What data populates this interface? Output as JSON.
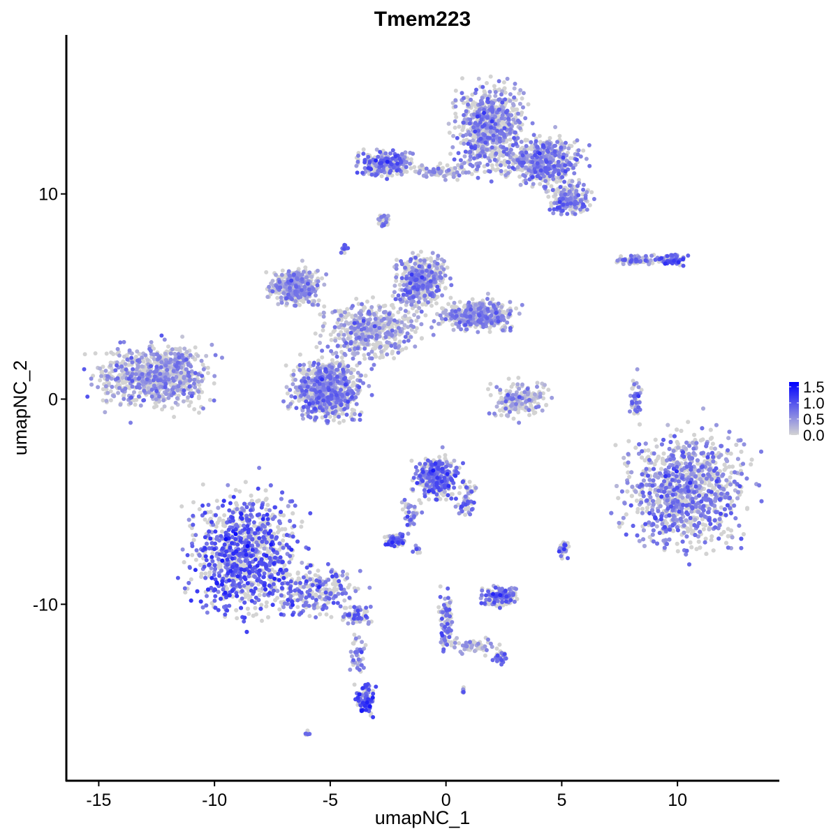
{
  "chart_data": {
    "type": "scatter",
    "title": "Tmem223",
    "xlabel": "umapNC_1",
    "ylabel": "umapNC_2",
    "xlim": [
      -16.4,
      14.4
    ],
    "ylim": [
      -18.6,
      17.75
    ],
    "xticks": [
      -15,
      -10,
      -5,
      0,
      5,
      10
    ],
    "yticks": [
      -10,
      0,
      10
    ],
    "grid": false,
    "legend": {
      "placement": "right",
      "type": "colorbar",
      "ticks": [
        "0.0",
        "0.5",
        "1.0",
        "1.5"
      ],
      "tick_values": [
        0,
        0.5,
        1.0,
        1.5
      ],
      "range": [
        0,
        1.65
      ],
      "low_color": "#d3d3d3",
      "high_color": "#0000ff"
    },
    "clusters": [
      {
        "x": -12.7,
        "y": 1.05,
        "sx": 1.6,
        "sy": 1.0,
        "n": 700,
        "mean_expr": 0.45
      },
      {
        "x": -11.6,
        "y": 1.8,
        "sx": 0.5,
        "sy": 0.6,
        "n": 80,
        "mean_expr": 0.4
      },
      {
        "x": -8.7,
        "y": -7.5,
        "sx": 1.5,
        "sy": 2.0,
        "n": 1400,
        "mean_expr": 0.9
      },
      {
        "x": -5.6,
        "y": -9.3,
        "sx": 1.3,
        "sy": 0.8,
        "n": 250,
        "mean_expr": 0.7
      },
      {
        "x": -3.8,
        "y": -10.5,
        "sx": 0.4,
        "sy": 0.3,
        "n": 60,
        "mean_expr": 0.7
      },
      {
        "x": -3.5,
        "y": -14.6,
        "sx": 0.25,
        "sy": 0.6,
        "n": 90,
        "mean_expr": 1.0
      },
      {
        "x": -3.8,
        "y": -12.5,
        "sx": 0.2,
        "sy": 0.8,
        "n": 40,
        "mean_expr": 0.6
      },
      {
        "x": 1.9,
        "y": 13.3,
        "sx": 1.0,
        "sy": 1.4,
        "n": 700,
        "mean_expr": 0.55
      },
      {
        "x": 4.3,
        "y": 11.6,
        "sx": 1.0,
        "sy": 0.8,
        "n": 450,
        "mean_expr": 0.6
      },
      {
        "x": 5.3,
        "y": 9.7,
        "sx": 0.6,
        "sy": 0.5,
        "n": 200,
        "mean_expr": 0.6
      },
      {
        "x": -2.6,
        "y": 11.5,
        "sx": 0.8,
        "sy": 0.4,
        "n": 250,
        "mean_expr": 0.7
      },
      {
        "x": 0.0,
        "y": 11.1,
        "sx": 1.0,
        "sy": 0.25,
        "n": 80,
        "mean_expr": 0.4
      },
      {
        "x": -6.5,
        "y": 5.5,
        "sx": 0.7,
        "sy": 0.6,
        "n": 350,
        "mean_expr": 0.45
      },
      {
        "x": -1.1,
        "y": 5.8,
        "sx": 0.7,
        "sy": 0.8,
        "n": 450,
        "mean_expr": 0.55
      },
      {
        "x": 1.4,
        "y": 4.1,
        "sx": 1.0,
        "sy": 0.5,
        "n": 400,
        "mean_expr": 0.5
      },
      {
        "x": -3.2,
        "y": 3.4,
        "sx": 1.4,
        "sy": 0.9,
        "n": 500,
        "mean_expr": 0.4
      },
      {
        "x": -5.1,
        "y": 0.5,
        "sx": 1.0,
        "sy": 1.0,
        "n": 700,
        "mean_expr": 0.6
      },
      {
        "x": 3.1,
        "y": 0.0,
        "sx": 0.8,
        "sy": 0.6,
        "n": 180,
        "mean_expr": 0.35
      },
      {
        "x": 10.4,
        "y": -4.4,
        "sx": 1.7,
        "sy": 1.9,
        "n": 2200,
        "mean_expr": 0.6
      },
      {
        "x": -0.4,
        "y": -3.8,
        "sx": 0.6,
        "sy": 0.7,
        "n": 300,
        "mean_expr": 0.8
      },
      {
        "x": 0.9,
        "y": -4.8,
        "sx": 0.3,
        "sy": 0.6,
        "n": 60,
        "mean_expr": 0.6
      },
      {
        "x": -2.2,
        "y": -6.9,
        "sx": 0.3,
        "sy": 0.2,
        "n": 90,
        "mean_expr": 0.9
      },
      {
        "x": -1.5,
        "y": -5.6,
        "sx": 0.25,
        "sy": 0.7,
        "n": 40,
        "mean_expr": 0.6
      },
      {
        "x": 2.3,
        "y": -9.6,
        "sx": 0.5,
        "sy": 0.3,
        "n": 180,
        "mean_expr": 0.7
      },
      {
        "x": 0.0,
        "y": -10.8,
        "sx": 0.2,
        "sy": 1.0,
        "n": 90,
        "mean_expr": 0.7
      },
      {
        "x": 1.3,
        "y": -12.0,
        "sx": 0.8,
        "sy": 0.3,
        "n": 60,
        "mean_expr": 0.3
      },
      {
        "x": 2.4,
        "y": -12.6,
        "sx": 0.2,
        "sy": 0.2,
        "n": 30,
        "mean_expr": 0.8
      },
      {
        "x": 8.2,
        "y": 6.8,
        "sx": 0.5,
        "sy": 0.15,
        "n": 70,
        "mean_expr": 0.6
      },
      {
        "x": 9.7,
        "y": 6.8,
        "sx": 0.4,
        "sy": 0.2,
        "n": 80,
        "mean_expr": 0.8
      },
      {
        "x": 8.2,
        "y": 0.0,
        "sx": 0.15,
        "sy": 0.7,
        "n": 40,
        "mean_expr": 0.7
      },
      {
        "x": 5.1,
        "y": -7.3,
        "sx": 0.15,
        "sy": 0.3,
        "n": 30,
        "mean_expr": 0.8
      },
      {
        "x": -1.3,
        "y": -7.3,
        "sx": 0.15,
        "sy": 0.15,
        "n": 10,
        "mean_expr": 0.8
      },
      {
        "x": -6.0,
        "y": -16.3,
        "sx": 0.1,
        "sy": 0.1,
        "n": 8,
        "mean_expr": 0.8
      },
      {
        "x": 0.7,
        "y": -14.2,
        "sx": 0.1,
        "sy": 0.1,
        "n": 6,
        "mean_expr": 0.8
      },
      {
        "x": -2.7,
        "y": 8.7,
        "sx": 0.2,
        "sy": 0.3,
        "n": 25,
        "mean_expr": 0.6
      },
      {
        "x": -4.4,
        "y": 7.4,
        "sx": 0.15,
        "sy": 0.2,
        "n": 15,
        "mean_expr": 0.7
      }
    ]
  }
}
